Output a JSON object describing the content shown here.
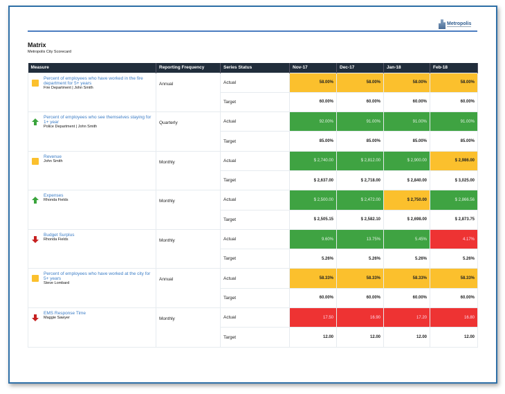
{
  "header": {
    "logo_text": "Metropolis",
    "title": "Matrix",
    "subtitle": "Metropolis City Scorecard"
  },
  "columns": [
    "Measure",
    "Reporting Frequency",
    "Series Status",
    "Nov-17",
    "Dec-17",
    "Jan-18",
    "Feb-18"
  ],
  "colors": {
    "green": "#3fa342",
    "yellow": "#fbc02d",
    "red": "#ee3333",
    "header": "#212d3b"
  },
  "rows": [
    {
      "name": "Percent of employees who have worked in the fire department for 5+ years",
      "owner": "Fire Department | John Smith",
      "icon": "yellow-square",
      "frequency": "Annual",
      "actual_label": "Actual",
      "target_label": "Target",
      "actual": [
        "58.00%",
        "58.00%",
        "58.00%",
        "58.00%"
      ],
      "actual_status": [
        "y",
        "y",
        "y",
        "y"
      ],
      "target": [
        "60.00%",
        "60.00%",
        "60.00%",
        "60.00%"
      ]
    },
    {
      "name": "Percent of employees who see themselves staying for 1+ year",
      "owner": "Police Department | John Smith",
      "icon": "green-up-arrow",
      "frequency": "Quarterly",
      "actual_label": "Actual",
      "target_label": "Target",
      "actual": [
        "92.00%",
        "91.00%",
        "91.00%",
        "91.00%"
      ],
      "actual_status": [
        "g",
        "g",
        "g",
        "g"
      ],
      "target": [
        "85.00%",
        "85.00%",
        "85.00%",
        "85.00%"
      ]
    },
    {
      "name": "Revenue",
      "owner": "John Smith",
      "icon": "yellow-square",
      "frequency": "Monthly",
      "actual_label": "Actual",
      "target_label": "Target",
      "actual": [
        "$ 2,740.00",
        "$ 2,812.00",
        "$ 2,900.00",
        "$ 2,986.00"
      ],
      "actual_status": [
        "g",
        "g",
        "g",
        "y"
      ],
      "target": [
        "$ 2,637.00",
        "$ 2,718.00",
        "$ 2,840.00",
        "$ 3,025.00"
      ]
    },
    {
      "name": "Expenses",
      "owner": "Rhonda Fields",
      "icon": "green-up-arrow",
      "frequency": "Monthly",
      "actual_label": "Actual",
      "target_label": "Target",
      "actual": [
        "$ 2,500.00",
        "$ 2,472.00",
        "$ 2,750.00",
        "$ 2,866.56"
      ],
      "actual_status": [
        "g",
        "g",
        "y",
        "g"
      ],
      "target": [
        "$ 2,505.15",
        "$ 2,582.10",
        "$ 2,698.00",
        "$ 2,873.75"
      ]
    },
    {
      "name": "Budget Surplus",
      "owner": "Rhonda Fields",
      "icon": "red-down-arrow",
      "frequency": "Monthly",
      "actual_label": "Actual",
      "target_label": "Target",
      "actual": [
        "9.60%",
        "13.75%",
        "5.45%",
        "4.17%"
      ],
      "actual_status": [
        "g",
        "g",
        "g",
        "r"
      ],
      "target": [
        "5.26%",
        "5.26%",
        "5.26%",
        "5.26%"
      ]
    },
    {
      "name": "Percent of employees who have worked at the city for 5+ years",
      "owner": "Steve Lombard",
      "icon": "yellow-square",
      "frequency": "Annual",
      "actual_label": "Actual",
      "target_label": "Target",
      "actual": [
        "58.33%",
        "58.33%",
        "58.33%",
        "58.33%"
      ],
      "actual_status": [
        "y",
        "y",
        "y",
        "y"
      ],
      "target": [
        "60.00%",
        "60.00%",
        "60.00%",
        "60.00%"
      ]
    },
    {
      "name": "EMS Response Time",
      "owner": "Maggie Sawyer",
      "icon": "red-down-arrow",
      "frequency": "Monthly",
      "actual_label": "Actual",
      "target_label": "Target",
      "actual": [
        "17.50",
        "16.90",
        "17.20",
        "16.80"
      ],
      "actual_status": [
        "r",
        "r",
        "r",
        "r"
      ],
      "target": [
        "12.00",
        "12.00",
        "12.00",
        "12.00"
      ]
    }
  ]
}
